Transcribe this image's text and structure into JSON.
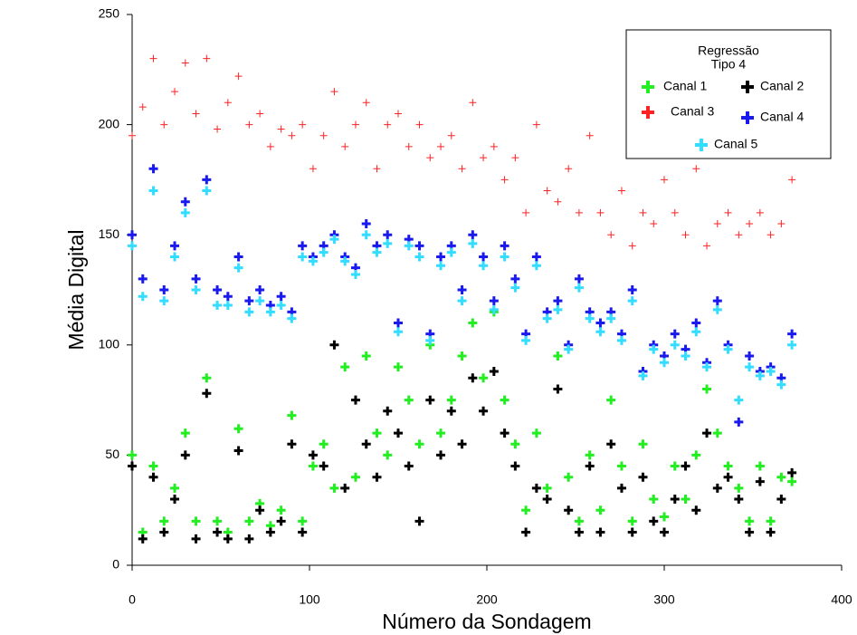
{
  "chart_data": {
    "type": "scatter",
    "xlabel": "Número da Sondagem",
    "ylabel": "Média Digital",
    "legend_title": [
      "Regressão",
      "Tipo 4"
    ],
    "legend_position": "upper right",
    "xlim": [
      0,
      400
    ],
    "xticks": [
      0,
      100,
      200,
      300,
      400
    ],
    "ylim": [
      0,
      250
    ],
    "yticks": [
      0,
      50,
      100,
      150,
      200,
      250
    ],
    "x": [
      0,
      6,
      12,
      18,
      24,
      30,
      36,
      42,
      48,
      54,
      60,
      66,
      72,
      78,
      84,
      90,
      96,
      102,
      108,
      114,
      120,
      126,
      132,
      138,
      144,
      150,
      156,
      162,
      168,
      174,
      180,
      186,
      192,
      198,
      204,
      210,
      216,
      222,
      228,
      234,
      240,
      246,
      252,
      258,
      264,
      270,
      276,
      282,
      288,
      294,
      300,
      306,
      312,
      318,
      324,
      330,
      336,
      342,
      348,
      354,
      360,
      366,
      372
    ],
    "series": [
      {
        "name": "Canal 1",
        "color": "#22ee22",
        "values": [
          50,
          15,
          45,
          20,
          35,
          60,
          20,
          85,
          20,
          15,
          62,
          20,
          28,
          18,
          25,
          68,
          20,
          45,
          55,
          35,
          90,
          40,
          95,
          60,
          50,
          90,
          75,
          55,
          100,
          60,
          75,
          95,
          110,
          85,
          115,
          75,
          55,
          25,
          60,
          35,
          95,
          40,
          20,
          50,
          25,
          75,
          45,
          20,
          55,
          30,
          22,
          45,
          30,
          50,
          80,
          60,
          45,
          35,
          20,
          45,
          20,
          40,
          38
        ]
      },
      {
        "name": "Canal 2",
        "color": "#000000",
        "values": [
          45,
          12,
          40,
          15,
          30,
          50,
          12,
          78,
          15,
          12,
          52,
          12,
          25,
          15,
          20,
          55,
          15,
          50,
          45,
          100,
          35,
          75,
          55,
          40,
          70,
          60,
          45,
          20,
          75,
          50,
          70,
          55,
          85,
          70,
          88,
          60,
          45,
          15,
          35,
          30,
          80,
          25,
          15,
          45,
          15,
          55,
          35,
          15,
          40,
          20,
          15,
          30,
          45,
          25,
          60,
          35,
          40,
          30,
          15,
          38,
          15,
          30,
          42
        ]
      },
      {
        "name": "Canal 3",
        "color": "#ff2222",
        "values": [
          195,
          208,
          230,
          200,
          215,
          228,
          205,
          230,
          198,
          210,
          222,
          200,
          205,
          190,
          198,
          195,
          200,
          180,
          195,
          215,
          190,
          200,
          210,
          180,
          200,
          205,
          190,
          200,
          185,
          190,
          195,
          180,
          210,
          185,
          190,
          175,
          185,
          160,
          200,
          170,
          165,
          180,
          160,
          195,
          160,
          150,
          170,
          145,
          160,
          155,
          175,
          160,
          150,
          180,
          145,
          155,
          160,
          150,
          155,
          160,
          150,
          155,
          175
        ]
      },
      {
        "name": "Canal 4",
        "color": "#1a1aee",
        "values": [
          150,
          130,
          180,
          125,
          145,
          165,
          130,
          175,
          125,
          122,
          140,
          120,
          125,
          118,
          122,
          115,
          145,
          140,
          145,
          150,
          140,
          135,
          155,
          145,
          150,
          110,
          148,
          145,
          105,
          140,
          145,
          125,
          150,
          140,
          120,
          145,
          130,
          105,
          140,
          115,
          120,
          100,
          130,
          115,
          110,
          115,
          105,
          125,
          88,
          100,
          95,
          105,
          98,
          110,
          92,
          120,
          100,
          65,
          95,
          88,
          90,
          85,
          105
        ]
      },
      {
        "name": "Canal 5",
        "color": "#33ddff",
        "values": [
          145,
          122,
          170,
          120,
          140,
          160,
          125,
          170,
          118,
          118,
          135,
          115,
          120,
          115,
          118,
          112,
          140,
          138,
          142,
          148,
          138,
          132,
          150,
          142,
          146,
          106,
          145,
          140,
          102,
          136,
          142,
          120,
          146,
          136,
          116,
          140,
          126,
          102,
          136,
          112,
          116,
          98,
          126,
          112,
          106,
          112,
          102,
          120,
          86,
          98,
          92,
          100,
          95,
          106,
          90,
          116,
          98,
          75,
          90,
          86,
          88,
          82,
          100
        ]
      }
    ]
  }
}
